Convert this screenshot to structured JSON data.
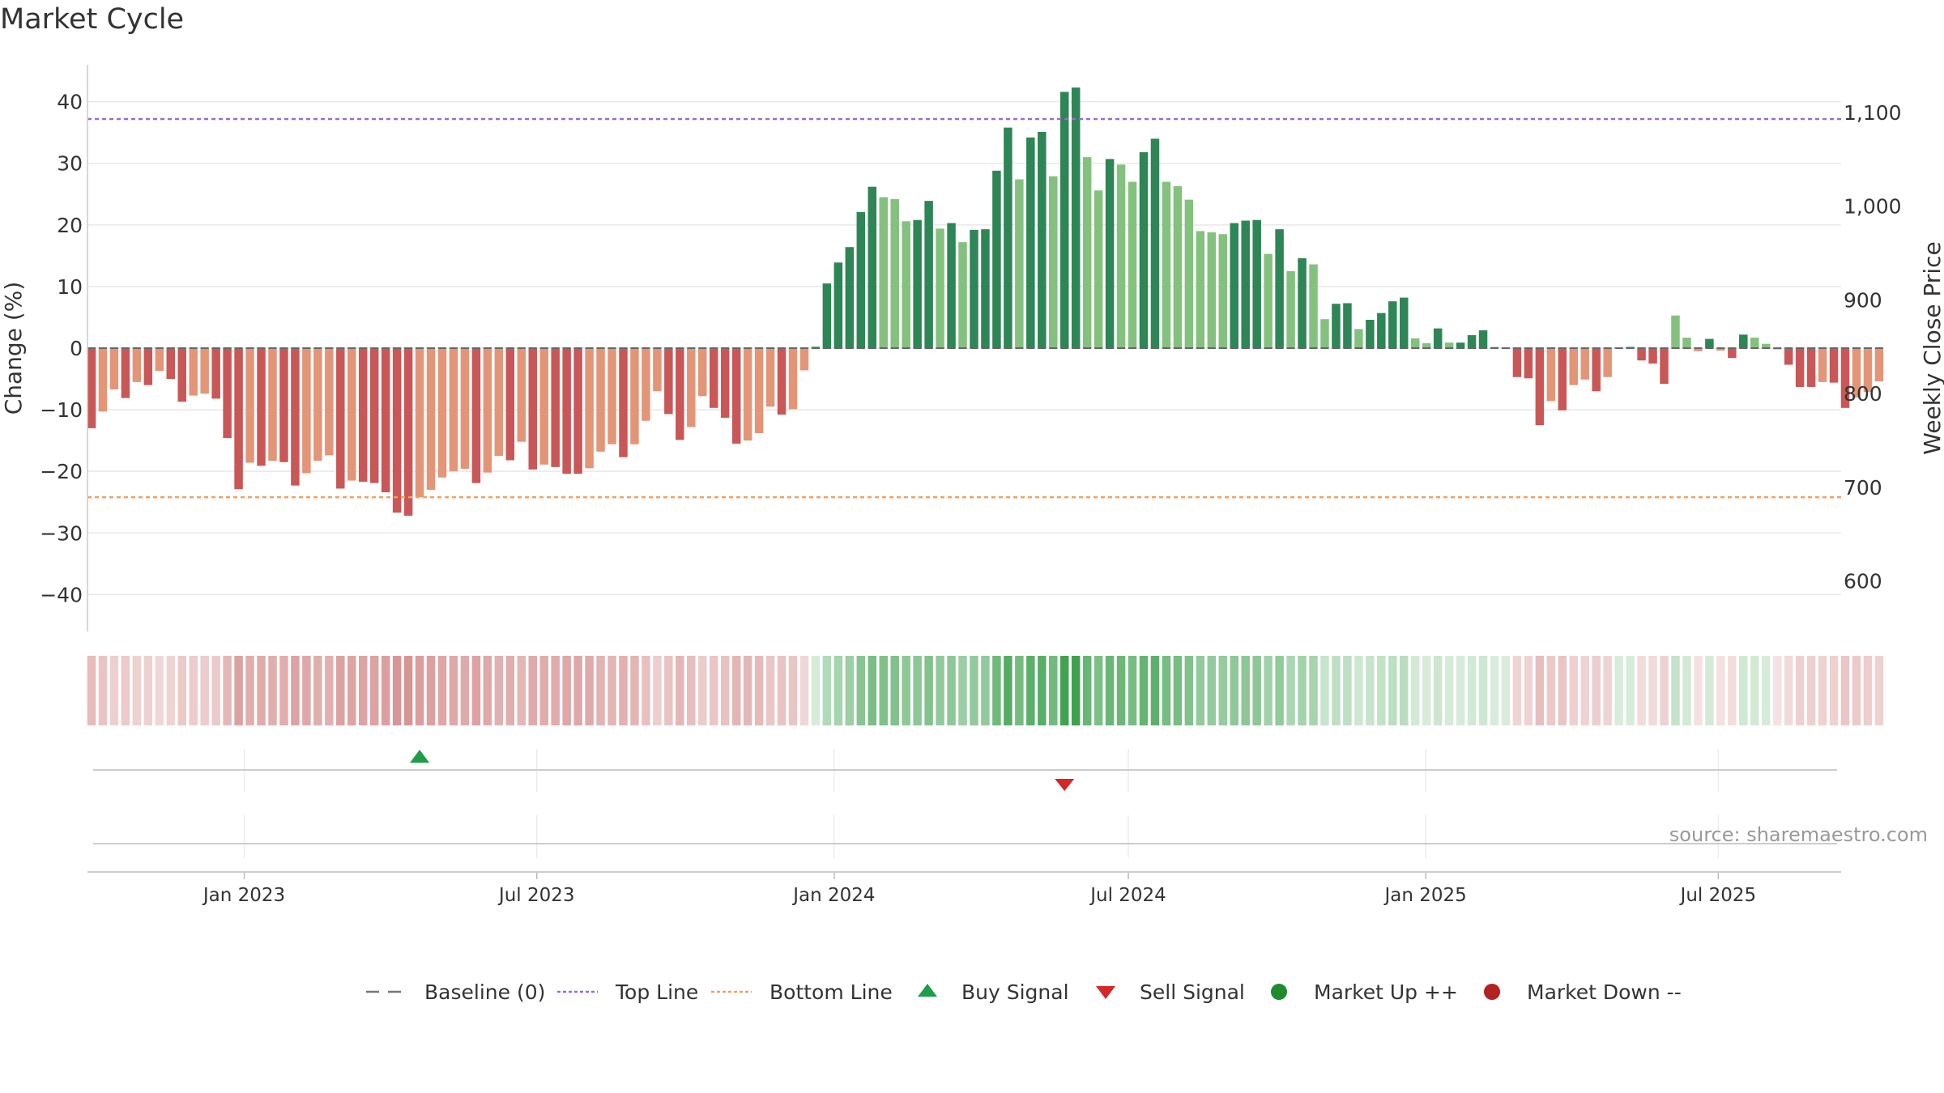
{
  "chart_data": {
    "type": "bar",
    "title": "Market Cycle",
    "ylabel_left": "Change (%)",
    "ylabel_right": "Weekly Close Price",
    "source": "source: sharemaestro.com",
    "ylim_left": [
      -46,
      46
    ],
    "ylim_right": [
      546,
      1151
    ],
    "yticks_left": [
      "40",
      "30",
      "20",
      "10",
      "0",
      "−10",
      "−20",
      "−30",
      "−40"
    ],
    "yticks_left_values": [
      40,
      30,
      20,
      10,
      0,
      -10,
      -20,
      -30,
      -40
    ],
    "yticks_right": [
      "1,100",
      "1,000",
      "900",
      "800",
      "700",
      "600"
    ],
    "yticks_right_values": [
      1100,
      1000,
      900,
      800,
      700,
      600
    ],
    "x_start": "2022-09-26",
    "x_end": "2025-09-15",
    "xticks": [
      {
        "date": "2023-01-01",
        "label": "Jan 2023"
      },
      {
        "date": "2023-07-01",
        "label": "Jul 2023"
      },
      {
        "date": "2024-01-01",
        "label": "Jan 2024"
      },
      {
        "date": "2024-07-01",
        "label": "Jul 2024"
      },
      {
        "date": "2025-01-01",
        "label": "Jan 2025"
      },
      {
        "date": "2025-07-01",
        "label": "Jul 2025"
      }
    ],
    "first_week": "2022-09-26",
    "top_line": 37.2,
    "bottom_line": -24.2,
    "values": [
      -13.0,
      -10.3,
      -6.7,
      -8.1,
      -5.5,
      -6.0,
      -3.7,
      -5.0,
      -8.7,
      -7.7,
      -7.4,
      -8.2,
      -14.6,
      -22.9,
      -18.6,
      -19.1,
      -18.3,
      -18.5,
      -22.3,
      -20.3,
      -18.3,
      -17.4,
      -22.8,
      -21.5,
      -21.7,
      -21.9,
      -23.4,
      -26.7,
      -27.2,
      -24.2,
      -23.0,
      -21.0,
      -20.0,
      -19.6,
      -21.9,
      -20.2,
      -17.5,
      -18.2,
      -15.2,
      -19.7,
      -18.9,
      -19.3,
      -20.4,
      -20.4,
      -19.5,
      -16.8,
      -15.6,
      -17.7,
      -15.6,
      -11.8,
      -7.0,
      -10.7,
      -14.9,
      -12.8,
      -7.8,
      -9.7,
      -11.3,
      -15.5,
      -15.0,
      -13.8,
      -9.5,
      -10.8,
      -9.9,
      -3.6,
      0.3,
      10.5,
      13.9,
      16.4,
      22.1,
      26.2,
      24.5,
      24.2,
      20.6,
      20.8,
      23.9,
      19.4,
      20.3,
      17.2,
      19.2,
      19.3,
      28.8,
      35.8,
      27.4,
      34.2,
      35.1,
      27.9,
      41.6,
      42.3,
      31.0,
      25.6,
      30.7,
      29.8,
      27.0,
      31.8,
      34.0,
      27.0,
      26.3,
      24.1,
      19.0,
      18.8,
      18.5,
      20.3,
      20.7,
      20.8,
      15.3,
      19.3,
      12.5,
      14.6,
      13.6,
      4.7,
      7.2,
      7.3,
      3.1,
      4.6,
      5.7,
      7.6,
      8.2,
      1.6,
      0.8,
      3.2,
      0.9,
      0.9,
      2.1,
      2.9,
      0.2,
      0.0,
      -4.7,
      -4.9,
      -12.5,
      -8.6,
      -10.1,
      -6.0,
      -5.1,
      -7.0,
      -4.7,
      0.1,
      0.2,
      -2.0,
      -2.5,
      -5.8,
      5.3,
      1.7,
      -0.5,
      1.5,
      -0.4,
      -1.6,
      2.2,
      1.7,
      0.7,
      -0.2,
      -2.7,
      -6.3,
      -6.3,
      -5.5,
      -5.6,
      -9.7,
      -8.0,
      -7.1,
      -5.4
    ],
    "buy_signals": [
      {
        "date": "2023-04-17"
      }
    ],
    "sell_signals": [
      {
        "date": "2024-05-20"
      }
    ],
    "legend": [
      {
        "label": "Baseline (0)",
        "kind": "dash",
        "color": "#777777"
      },
      {
        "label": "Top Line",
        "kind": "dot",
        "color": "#9d6bd0"
      },
      {
        "label": "Bottom Line",
        "kind": "dot",
        "color": "#f0a060"
      },
      {
        "label": "Buy Signal",
        "kind": "tri-up",
        "color": "#1f9e4a"
      },
      {
        "label": "Sell Signal",
        "kind": "tri-down",
        "color": "#d62728"
      },
      {
        "label": "Market Up ++",
        "kind": "circle",
        "color": "#1e8c2e"
      },
      {
        "label": "Market Down --",
        "kind": "circle",
        "color": "#b22222"
      }
    ],
    "colors": {
      "up_strong": "#2e8555",
      "up_light": "#84c17f",
      "down_strong": "#c95757",
      "down_light": "#e39578",
      "grid": "#e8e8e8",
      "axis": "#cccccc",
      "heat_pos": "#3fa14f",
      "heat_neg": "#c86a6a"
    }
  }
}
